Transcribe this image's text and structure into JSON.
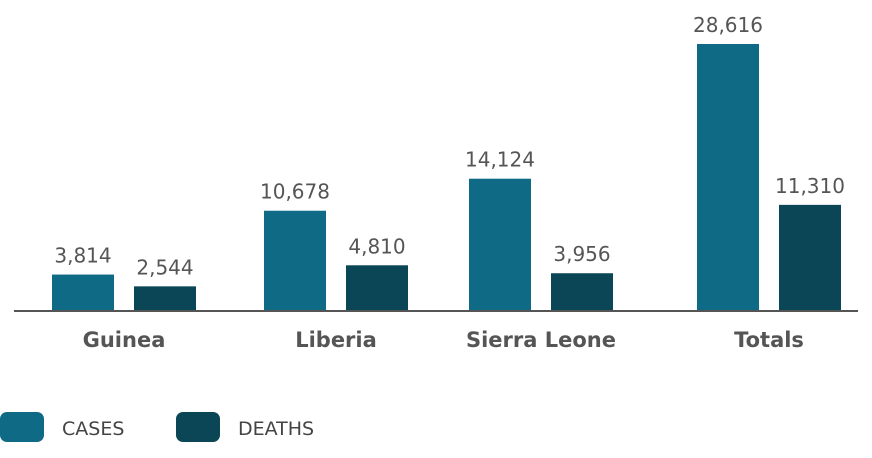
{
  "chart_data": {
    "type": "bar",
    "categories": [
      "Guinea",
      "Liberia",
      "Sierra Leone",
      "Totals"
    ],
    "series": [
      {
        "name": "CASES",
        "color": "#0f6b85",
        "values": [
          3814,
          10678,
          14124,
          28616
        ],
        "labels": [
          "3,814",
          "10,678",
          "14,124",
          "28,616"
        ]
      },
      {
        "name": "DEATHS",
        "color": "#0b4656",
        "values": [
          2544,
          4810,
          3956,
          11310
        ],
        "labels": [
          "2,544",
          "4,810",
          "3,956",
          "11,310"
        ]
      }
    ],
    "ylim": [
      0,
      28616
    ],
    "grid": false,
    "legend": "bottom-left",
    "title": "",
    "xlabel": "",
    "ylabel": ""
  }
}
